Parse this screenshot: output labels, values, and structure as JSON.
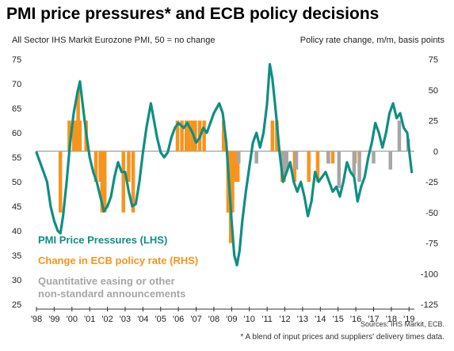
{
  "header": {
    "title": "PMI price pressures* and ECB policy decisions",
    "left_axis_caption": "All Sector IHS Markit Eurozone PMI, 50 = no change",
    "right_axis_caption": "Policy rate change, m/m, basis points"
  },
  "footer": {
    "source": "Sources: IHS Markit, ECB.",
    "footnote": "* A blend of input prices and suppliers' delivery times data."
  },
  "colors": {
    "pmi": "#0f8f82",
    "rate": "#f7941d",
    "qe": "#a6a6a6",
    "zero_line": "#b0b0b0"
  },
  "chart_data": {
    "type": "line",
    "title": "PMI price pressures* and ECB policy decisions",
    "xlabel": "",
    "left_axis": {
      "label": "All Sector IHS Markit Eurozone PMI, 50 = no change",
      "ylim": [
        25,
        75
      ],
      "ticks": [
        25,
        30,
        35,
        40,
        45,
        50,
        55,
        60,
        65,
        70,
        75
      ]
    },
    "right_axis": {
      "label": "Policy rate change, m/m, basis points",
      "ylim": [
        -125,
        75
      ],
      "ticks": [
        -125,
        -100,
        -75,
        -50,
        -25,
        0,
        25,
        50,
        75
      ]
    },
    "x_ticks": [
      "'98",
      "'99",
      "'00",
      "'01",
      "'02",
      "'03",
      "'04",
      "'05",
      "'06",
      "'07",
      "'08",
      "'09",
      "'10",
      "'11",
      "'12",
      "'13",
      "'14",
      "'15",
      "'16",
      "'17",
      "'18",
      "'19"
    ],
    "x_range": [
      1998.0,
      2019.3
    ],
    "legend": [
      {
        "label": "PMI  Price Pressures (LHS)",
        "color": "#0f8f82"
      },
      {
        "label": "Change in ECB policy rate (RHS)",
        "color": "#f7941d"
      },
      {
        "label": "Quantitative easing or other",
        "color": "#a6a6a6"
      },
      {
        "label": "non-standard announcements",
        "color": "#a6a6a6"
      }
    ],
    "series": [
      {
        "name": "PMI  Price Pressures (LHS)",
        "axis": "left",
        "points": [
          [
            1998.0,
            56
          ],
          [
            1998.2,
            54
          ],
          [
            1998.4,
            52
          ],
          [
            1998.6,
            50
          ],
          [
            1998.8,
            45
          ],
          [
            1999.0,
            42
          ],
          [
            1999.2,
            40
          ],
          [
            1999.35,
            39.5
          ],
          [
            1999.5,
            43
          ],
          [
            1999.7,
            50
          ],
          [
            1999.9,
            58
          ],
          [
            2000.1,
            64
          ],
          [
            2000.3,
            68
          ],
          [
            2000.45,
            70.5
          ],
          [
            2000.6,
            66
          ],
          [
            2000.8,
            60
          ],
          [
            2001.0,
            55
          ],
          [
            2001.2,
            52
          ],
          [
            2001.4,
            50
          ],
          [
            2001.6,
            47
          ],
          [
            2001.8,
            44
          ],
          [
            2002.0,
            45
          ],
          [
            2002.2,
            47
          ],
          [
            2002.4,
            51
          ],
          [
            2002.6,
            54
          ],
          [
            2002.8,
            52
          ],
          [
            2003.0,
            52
          ],
          [
            2003.2,
            48
          ],
          [
            2003.4,
            45
          ],
          [
            2003.6,
            45.5
          ],
          [
            2003.8,
            50
          ],
          [
            2004.0,
            56
          ],
          [
            2004.2,
            61
          ],
          [
            2004.45,
            66
          ],
          [
            2004.6,
            63
          ],
          [
            2004.8,
            59
          ],
          [
            2005.0,
            56
          ],
          [
            2005.2,
            55
          ],
          [
            2005.4,
            56
          ],
          [
            2005.6,
            59
          ],
          [
            2005.8,
            61
          ],
          [
            2006.0,
            62
          ],
          [
            2006.3,
            61
          ],
          [
            2006.5,
            62
          ],
          [
            2006.8,
            60
          ],
          [
            2007.0,
            58
          ],
          [
            2007.2,
            59
          ],
          [
            2007.4,
            61
          ],
          [
            2007.6,
            60
          ],
          [
            2007.8,
            62
          ],
          [
            2008.0,
            64
          ],
          [
            2008.3,
            66
          ],
          [
            2008.5,
            64
          ],
          [
            2008.7,
            58
          ],
          [
            2008.85,
            50
          ],
          [
            2009.0,
            42
          ],
          [
            2009.15,
            35
          ],
          [
            2009.3,
            33
          ],
          [
            2009.45,
            36
          ],
          [
            2009.6,
            42
          ],
          [
            2009.8,
            48
          ],
          [
            2010.0,
            53
          ],
          [
            2010.2,
            58
          ],
          [
            2010.4,
            60
          ],
          [
            2010.6,
            57
          ],
          [
            2010.8,
            60
          ],
          [
            2011.0,
            66
          ],
          [
            2011.15,
            74
          ],
          [
            2011.3,
            71
          ],
          [
            2011.5,
            64
          ],
          [
            2011.7,
            56
          ],
          [
            2011.9,
            50
          ],
          [
            2012.1,
            52
          ],
          [
            2012.3,
            54
          ],
          [
            2012.5,
            50
          ],
          [
            2012.7,
            48
          ],
          [
            2012.9,
            50
          ],
          [
            2013.1,
            47
          ],
          [
            2013.3,
            43
          ],
          [
            2013.5,
            46
          ],
          [
            2013.7,
            52
          ],
          [
            2013.9,
            50
          ],
          [
            2014.1,
            51
          ],
          [
            2014.3,
            52
          ],
          [
            2014.5,
            50
          ],
          [
            2014.7,
            48
          ],
          [
            2014.9,
            49
          ],
          [
            2015.1,
            47
          ],
          [
            2015.3,
            50
          ],
          [
            2015.5,
            54
          ],
          [
            2015.7,
            52
          ],
          [
            2015.9,
            51
          ],
          [
            2016.1,
            46
          ],
          [
            2016.3,
            49
          ],
          [
            2016.5,
            51
          ],
          [
            2016.7,
            55
          ],
          [
            2016.9,
            58
          ],
          [
            2017.1,
            62
          ],
          [
            2017.3,
            60
          ],
          [
            2017.5,
            57
          ],
          [
            2017.7,
            60
          ],
          [
            2017.9,
            64
          ],
          [
            2018.1,
            66
          ],
          [
            2018.3,
            63
          ],
          [
            2018.5,
            64
          ],
          [
            2018.7,
            61
          ],
          [
            2018.9,
            60
          ],
          [
            2019.05,
            55
          ],
          [
            2019.15,
            52
          ]
        ]
      },
      {
        "name": "Change in ECB policy rate (RHS)",
        "axis": "right",
        "events": [
          [
            1999.35,
            -50
          ],
          [
            1999.85,
            25
          ],
          [
            2000.1,
            25
          ],
          [
            2000.25,
            25
          ],
          [
            2000.35,
            50
          ],
          [
            2000.45,
            25
          ],
          [
            2000.8,
            25
          ],
          [
            2001.35,
            -25
          ],
          [
            2001.6,
            -25
          ],
          [
            2001.7,
            -50
          ],
          [
            2001.85,
            -50
          ],
          [
            2002.9,
            -50
          ],
          [
            2003.2,
            -25
          ],
          [
            2003.45,
            -50
          ],
          [
            2005.95,
            25
          ],
          [
            2006.2,
            25
          ],
          [
            2006.45,
            25
          ],
          [
            2006.6,
            25
          ],
          [
            2006.8,
            25
          ],
          [
            2006.95,
            25
          ],
          [
            2007.2,
            25
          ],
          [
            2007.45,
            25
          ],
          [
            2008.55,
            25
          ],
          [
            2008.8,
            -50
          ],
          [
            2008.85,
            -50
          ],
          [
            2008.95,
            -75
          ],
          [
            2009.05,
            -50
          ],
          [
            2009.2,
            -25
          ],
          [
            2009.35,
            -25
          ],
          [
            2011.3,
            25
          ],
          [
            2011.55,
            25
          ],
          [
            2011.85,
            -25
          ],
          [
            2011.95,
            -25
          ],
          [
            2012.55,
            -25
          ],
          [
            2013.35,
            -25
          ],
          [
            2013.85,
            -25
          ],
          [
            2014.45,
            -10
          ],
          [
            2014.7,
            -10
          ],
          [
            2015.95,
            -10
          ],
          [
            2016.2,
            -5
          ]
        ]
      },
      {
        "name": "Quantitative easing or other non-standard announcements",
        "axis": "right",
        "events": [
          [
            2009.4,
            -10
          ],
          [
            2010.4,
            -10
          ],
          [
            2011.9,
            -20
          ],
          [
            2012.1,
            -15
          ],
          [
            2012.65,
            -15
          ],
          [
            2014.45,
            -10
          ],
          [
            2015.05,
            -30
          ],
          [
            2015.9,
            -20
          ],
          [
            2016.2,
            -25
          ],
          [
            2017.0,
            -10
          ],
          [
            2017.95,
            -15
          ],
          [
            2018.45,
            25
          ],
          [
            2018.95,
            10
          ]
        ]
      }
    ]
  }
}
